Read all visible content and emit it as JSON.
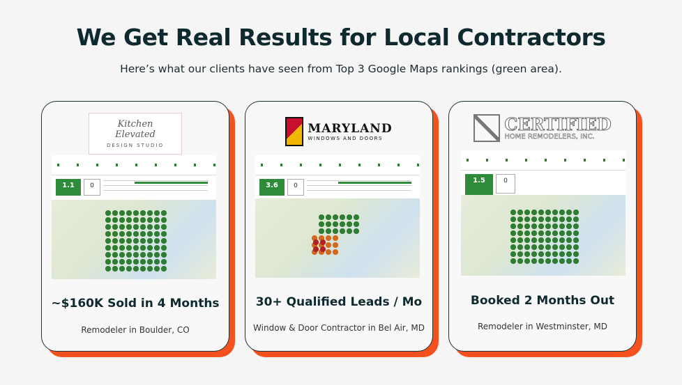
{
  "header": {
    "title": "We Get Real Results for Local Contractors",
    "subtitle": "Here’s what our clients have seen from Top 3 Google Maps rankings (green area)."
  },
  "cards": [
    {
      "logo": {
        "line1": "Kitchen Elevated",
        "line2": "DESIGN STUDIO"
      },
      "rank": "1.1",
      "count": "0",
      "headline": "~$160K Sold in 4 Months",
      "caption": "Remodeler in Boulder, CO"
    },
    {
      "logo": {
        "line1": "MARYLAND",
        "line2": "WINDOWS AND DOORS"
      },
      "rank": "3.6",
      "count": "0",
      "headline": "30+ Qualified Leads / Mo",
      "caption": "Window & Door Contractor in Bel Air, MD"
    },
    {
      "logo": {
        "line1": "CERTIFIED",
        "line2": "HOME REMODELERS, INC."
      },
      "rank": "1.5",
      "count": "0",
      "headline": "Booked 2 Months Out",
      "caption": "Remodeler in Westminster, MD"
    }
  ]
}
